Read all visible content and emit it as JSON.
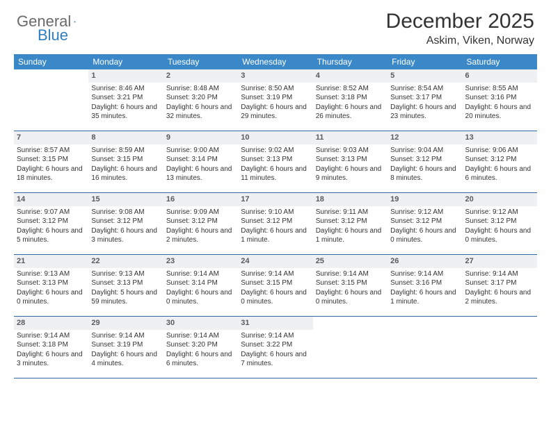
{
  "logo": {
    "part1": "General",
    "part2": "Blue"
  },
  "colors": {
    "header_bg": "#3a88c8",
    "header_text": "#ffffff",
    "daynum_bg": "#eef0f2",
    "daynum_text": "#5a5a5a",
    "body_text": "#333333",
    "row_border": "#2d6aa3",
    "logo_gray": "#6a6a6a",
    "logo_blue": "#2f7fc0"
  },
  "title": {
    "month": "December 2025",
    "location": "Askim, Viken, Norway"
  },
  "day_headers": [
    "Sunday",
    "Monday",
    "Tuesday",
    "Wednesday",
    "Thursday",
    "Friday",
    "Saturday"
  ],
  "weeks": [
    [
      {
        "n": "",
        "sr": "",
        "ss": "",
        "dl": ""
      },
      {
        "n": "1",
        "sr": "Sunrise: 8:46 AM",
        "ss": "Sunset: 3:21 PM",
        "dl": "Daylight: 6 hours and 35 minutes."
      },
      {
        "n": "2",
        "sr": "Sunrise: 8:48 AM",
        "ss": "Sunset: 3:20 PM",
        "dl": "Daylight: 6 hours and 32 minutes."
      },
      {
        "n": "3",
        "sr": "Sunrise: 8:50 AM",
        "ss": "Sunset: 3:19 PM",
        "dl": "Daylight: 6 hours and 29 minutes."
      },
      {
        "n": "4",
        "sr": "Sunrise: 8:52 AM",
        "ss": "Sunset: 3:18 PM",
        "dl": "Daylight: 6 hours and 26 minutes."
      },
      {
        "n": "5",
        "sr": "Sunrise: 8:54 AM",
        "ss": "Sunset: 3:17 PM",
        "dl": "Daylight: 6 hours and 23 minutes."
      },
      {
        "n": "6",
        "sr": "Sunrise: 8:55 AM",
        "ss": "Sunset: 3:16 PM",
        "dl": "Daylight: 6 hours and 20 minutes."
      }
    ],
    [
      {
        "n": "7",
        "sr": "Sunrise: 8:57 AM",
        "ss": "Sunset: 3:15 PM",
        "dl": "Daylight: 6 hours and 18 minutes."
      },
      {
        "n": "8",
        "sr": "Sunrise: 8:59 AM",
        "ss": "Sunset: 3:15 PM",
        "dl": "Daylight: 6 hours and 16 minutes."
      },
      {
        "n": "9",
        "sr": "Sunrise: 9:00 AM",
        "ss": "Sunset: 3:14 PM",
        "dl": "Daylight: 6 hours and 13 minutes."
      },
      {
        "n": "10",
        "sr": "Sunrise: 9:02 AM",
        "ss": "Sunset: 3:13 PM",
        "dl": "Daylight: 6 hours and 11 minutes."
      },
      {
        "n": "11",
        "sr": "Sunrise: 9:03 AM",
        "ss": "Sunset: 3:13 PM",
        "dl": "Daylight: 6 hours and 9 minutes."
      },
      {
        "n": "12",
        "sr": "Sunrise: 9:04 AM",
        "ss": "Sunset: 3:12 PM",
        "dl": "Daylight: 6 hours and 8 minutes."
      },
      {
        "n": "13",
        "sr": "Sunrise: 9:06 AM",
        "ss": "Sunset: 3:12 PM",
        "dl": "Daylight: 6 hours and 6 minutes."
      }
    ],
    [
      {
        "n": "14",
        "sr": "Sunrise: 9:07 AM",
        "ss": "Sunset: 3:12 PM",
        "dl": "Daylight: 6 hours and 5 minutes."
      },
      {
        "n": "15",
        "sr": "Sunrise: 9:08 AM",
        "ss": "Sunset: 3:12 PM",
        "dl": "Daylight: 6 hours and 3 minutes."
      },
      {
        "n": "16",
        "sr": "Sunrise: 9:09 AM",
        "ss": "Sunset: 3:12 PM",
        "dl": "Daylight: 6 hours and 2 minutes."
      },
      {
        "n": "17",
        "sr": "Sunrise: 9:10 AM",
        "ss": "Sunset: 3:12 PM",
        "dl": "Daylight: 6 hours and 1 minute."
      },
      {
        "n": "18",
        "sr": "Sunrise: 9:11 AM",
        "ss": "Sunset: 3:12 PM",
        "dl": "Daylight: 6 hours and 1 minute."
      },
      {
        "n": "19",
        "sr": "Sunrise: 9:12 AM",
        "ss": "Sunset: 3:12 PM",
        "dl": "Daylight: 6 hours and 0 minutes."
      },
      {
        "n": "20",
        "sr": "Sunrise: 9:12 AM",
        "ss": "Sunset: 3:12 PM",
        "dl": "Daylight: 6 hours and 0 minutes."
      }
    ],
    [
      {
        "n": "21",
        "sr": "Sunrise: 9:13 AM",
        "ss": "Sunset: 3:13 PM",
        "dl": "Daylight: 6 hours and 0 minutes."
      },
      {
        "n": "22",
        "sr": "Sunrise: 9:13 AM",
        "ss": "Sunset: 3:13 PM",
        "dl": "Daylight: 5 hours and 59 minutes."
      },
      {
        "n": "23",
        "sr": "Sunrise: 9:14 AM",
        "ss": "Sunset: 3:14 PM",
        "dl": "Daylight: 6 hours and 0 minutes."
      },
      {
        "n": "24",
        "sr": "Sunrise: 9:14 AM",
        "ss": "Sunset: 3:15 PM",
        "dl": "Daylight: 6 hours and 0 minutes."
      },
      {
        "n": "25",
        "sr": "Sunrise: 9:14 AM",
        "ss": "Sunset: 3:15 PM",
        "dl": "Daylight: 6 hours and 0 minutes."
      },
      {
        "n": "26",
        "sr": "Sunrise: 9:14 AM",
        "ss": "Sunset: 3:16 PM",
        "dl": "Daylight: 6 hours and 1 minute."
      },
      {
        "n": "27",
        "sr": "Sunrise: 9:14 AM",
        "ss": "Sunset: 3:17 PM",
        "dl": "Daylight: 6 hours and 2 minutes."
      }
    ],
    [
      {
        "n": "28",
        "sr": "Sunrise: 9:14 AM",
        "ss": "Sunset: 3:18 PM",
        "dl": "Daylight: 6 hours and 3 minutes."
      },
      {
        "n": "29",
        "sr": "Sunrise: 9:14 AM",
        "ss": "Sunset: 3:19 PM",
        "dl": "Daylight: 6 hours and 4 minutes."
      },
      {
        "n": "30",
        "sr": "Sunrise: 9:14 AM",
        "ss": "Sunset: 3:20 PM",
        "dl": "Daylight: 6 hours and 6 minutes."
      },
      {
        "n": "31",
        "sr": "Sunrise: 9:14 AM",
        "ss": "Sunset: 3:22 PM",
        "dl": "Daylight: 6 hours and 7 minutes."
      },
      {
        "n": "",
        "sr": "",
        "ss": "",
        "dl": ""
      },
      {
        "n": "",
        "sr": "",
        "ss": "",
        "dl": ""
      },
      {
        "n": "",
        "sr": "",
        "ss": "",
        "dl": ""
      }
    ]
  ]
}
